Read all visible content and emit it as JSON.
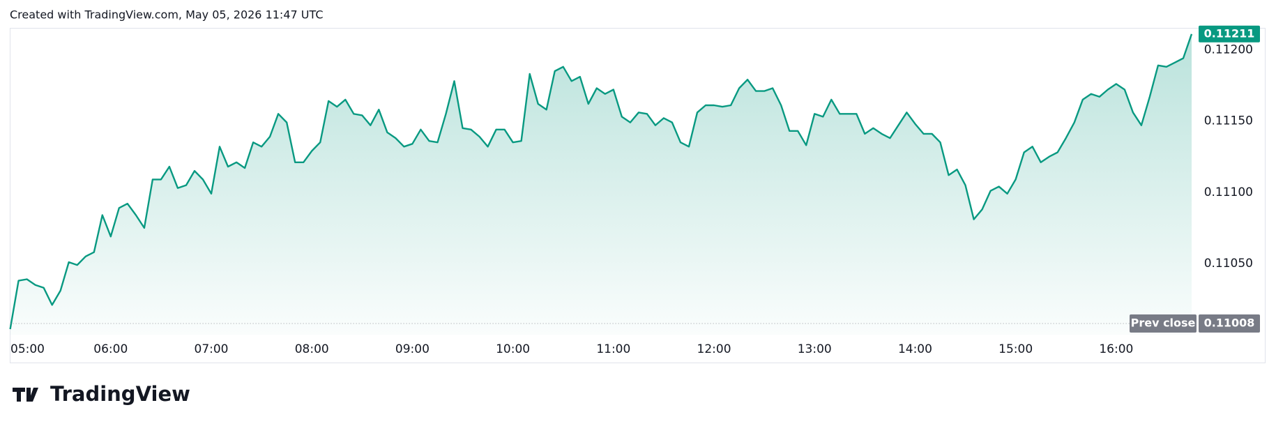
{
  "header": {
    "title": "Created with TradingView.com, May 05, 2026 11:47 UTC"
  },
  "logo": {
    "text": "TradingView"
  },
  "chart_data": {
    "type": "area",
    "x": [
      300,
      305,
      310,
      315,
      320,
      325,
      330,
      335,
      340,
      345,
      350,
      355,
      360,
      365,
      370,
      375,
      380,
      385,
      390,
      395,
      400,
      405,
      410,
      415,
      420,
      425,
      430,
      435,
      440,
      445,
      450,
      455,
      460,
      465,
      470,
      475,
      480,
      485,
      490,
      495,
      500,
      505,
      510,
      515,
      520,
      525,
      530,
      535,
      540,
      545,
      550,
      555,
      560,
      565,
      570,
      575,
      580,
      585,
      590,
      595,
      600,
      605,
      610,
      615,
      620,
      625,
      630,
      635,
      640,
      645,
      650,
      655,
      660,
      665,
      670,
      675,
      680,
      685,
      690,
      695,
      700,
      705,
      710,
      715,
      720,
      725,
      730,
      735,
      740,
      745,
      750,
      755,
      760,
      765,
      770,
      775,
      780,
      785,
      790,
      795,
      800,
      805,
      810,
      815,
      820,
      825,
      830,
      835,
      840,
      845,
      850,
      855,
      860,
      865,
      870,
      875,
      880,
      885,
      890,
      895,
      900,
      905,
      910,
      915,
      920,
      925,
      930,
      935,
      940,
      945,
      950,
      955,
      960,
      965,
      970,
      975,
      980,
      985,
      990,
      995,
      1000,
      1005
    ],
    "series": [
      {
        "color": "#089981",
        "values": [
          0.11004,
          0.11038,
          0.11039,
          0.11035,
          0.11033,
          0.11021,
          0.11031,
          0.11051,
          0.11049,
          0.11055,
          0.11058,
          0.11084,
          0.11069,
          0.11089,
          0.11092,
          0.11084,
          0.11075,
          0.11109,
          0.11109,
          0.11118,
          0.11103,
          0.11105,
          0.11115,
          0.11109,
          0.11099,
          0.11132,
          0.11118,
          0.11121,
          0.11117,
          0.11135,
          0.11132,
          0.11139,
          0.11155,
          0.11149,
          0.11121,
          0.11121,
          0.11129,
          0.11135,
          0.11164,
          0.1116,
          0.11165,
          0.11155,
          0.11154,
          0.11147,
          0.11158,
          0.11142,
          0.11138,
          0.11132,
          0.11134,
          0.11144,
          0.11136,
          0.11135,
          0.11155,
          0.11178,
          0.11145,
          0.11144,
          0.11139,
          0.11132,
          0.11144,
          0.11144,
          0.11135,
          0.11136,
          0.11183,
          0.11162,
          0.11158,
          0.11185,
          0.11188,
          0.11178,
          0.11181,
          0.11162,
          0.11173,
          0.11169,
          0.11172,
          0.11153,
          0.11149,
          0.11156,
          0.11155,
          0.11147,
          0.11152,
          0.11149,
          0.11135,
          0.11132,
          0.11156,
          0.11161,
          0.11161,
          0.1116,
          0.11161,
          0.11173,
          0.11179,
          0.11171,
          0.11171,
          0.11173,
          0.11161,
          0.11143,
          0.11143,
          0.11133,
          0.11155,
          0.11153,
          0.11165,
          0.11155,
          0.11155,
          0.11155,
          0.11141,
          0.11145,
          0.11141,
          0.11138,
          0.11147,
          0.11156,
          0.11148,
          0.11141,
          0.11141,
          0.11135,
          0.11112,
          0.11116,
          0.11105,
          0.11081,
          0.11088,
          0.11101,
          0.11104,
          0.11099,
          0.11109,
          0.11128,
          0.11132,
          0.11121,
          0.11125,
          0.11128,
          0.11138,
          0.11149,
          0.11165,
          0.11169,
          0.11167,
          0.11172,
          0.11176,
          0.11172,
          0.11156,
          0.11147,
          0.11167,
          0.11189,
          0.11188,
          0.11191,
          0.11194,
          0.11211
        ]
      }
    ],
    "xlim": [
      300,
      1005
    ],
    "xticks": [
      {
        "value": 300,
        "label": "05:00"
      },
      {
        "value": 360,
        "label": "06:00"
      },
      {
        "value": 420,
        "label": "07:00"
      },
      {
        "value": 480,
        "label": "08:00"
      },
      {
        "value": 540,
        "label": "09:00"
      },
      {
        "value": 600,
        "label": "10:00"
      },
      {
        "value": 660,
        "label": "11:00"
      },
      {
        "value": 720,
        "label": "12:00"
      },
      {
        "value": 780,
        "label": "13:00"
      },
      {
        "value": 840,
        "label": "14:00"
      },
      {
        "value": 900,
        "label": "15:00"
      },
      {
        "value": 960,
        "label": "16:00"
      }
    ],
    "ylim": [
      0.11,
      0.11215
    ],
    "yticks": [
      {
        "value": 0.1105,
        "label": "0.11050"
      },
      {
        "value": 0.111,
        "label": "0.11100"
      },
      {
        "value": 0.1115,
        "label": "0.11150"
      },
      {
        "value": 0.112,
        "label": "0.11200"
      }
    ],
    "prev_close": {
      "label": "Prev close",
      "value": 0.11008
    }
  }
}
